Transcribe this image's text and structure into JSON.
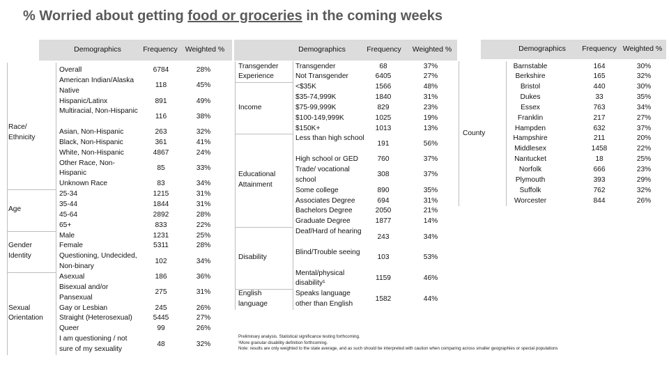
{
  "title": {
    "prefix": "% Worried about getting ",
    "underlined": "food or groceries",
    "suffix": " in the coming weeks"
  },
  "headers": {
    "demographics": "Demographics",
    "frequency": "Frequency",
    "weighted": "Weighted %"
  },
  "table1": {
    "groups": [
      {
        "label": "Race/ Ethnicity"
      },
      {
        "label": "Age"
      },
      {
        "label": "Gender Identity"
      },
      {
        "label": "Sexual Orientation"
      }
    ],
    "rows": [
      {
        "label": "Overall",
        "freq": "6784",
        "pct": "28%"
      },
      {
        "label": "American Indian/Alaska Native",
        "freq": "118",
        "pct": "45%"
      },
      {
        "label": "Hispanic/Latinx",
        "freq": "891",
        "pct": "49%"
      },
      {
        "label": "Multiracial, Non-Hispanic",
        "freq": "116",
        "pct": "38%"
      },
      {
        "label": "Asian, Non-Hispanic",
        "freq": "263",
        "pct": "32%"
      },
      {
        "label": "Black, Non-Hispanic",
        "freq": "361",
        "pct": "41%"
      },
      {
        "label": "White, Non-Hispanic",
        "freq": "4867",
        "pct": "24%"
      },
      {
        "label": "Other Race, Non-Hispanic",
        "freq": "85",
        "pct": "33%"
      },
      {
        "label": "Unknown Race",
        "freq": "83",
        "pct": "34%"
      },
      {
        "label": "25-34",
        "freq": "1215",
        "pct": "31%"
      },
      {
        "label": "35-44",
        "freq": "1844",
        "pct": "31%"
      },
      {
        "label": "45-64",
        "freq": "2892",
        "pct": "28%"
      },
      {
        "label": "65+",
        "freq": "833",
        "pct": "22%"
      },
      {
        "label": "Male",
        "freq": "1231",
        "pct": "25%"
      },
      {
        "label": "Female",
        "freq": "5311",
        "pct": "28%"
      },
      {
        "label": "Questioning, Undecided, Non-binary",
        "freq": "102",
        "pct": "34%"
      },
      {
        "label": "Asexual",
        "freq": "186",
        "pct": "36%"
      },
      {
        "label": "Bisexual and/or Pansexual",
        "freq": "275",
        "pct": "31%"
      },
      {
        "label": "Gay or Lesbian",
        "freq": "245",
        "pct": "26%"
      },
      {
        "label": "Straight (Heterosexual)",
        "freq": "5445",
        "pct": "27%"
      },
      {
        "label": "Queer",
        "freq": "99",
        "pct": "26%"
      },
      {
        "label": "I am questioning / not sure of my sexuality",
        "freq": "48",
        "pct": "32%"
      }
    ]
  },
  "table2": {
    "groups": [
      {
        "label": "Transgender Experience"
      },
      {
        "label": "Income"
      },
      {
        "label": "Educational Attainment"
      },
      {
        "label": "Disability"
      },
      {
        "label": "English language"
      }
    ],
    "rows": [
      {
        "label": "Transgender",
        "freq": "68",
        "pct": "37%"
      },
      {
        "label": "Not Transgender",
        "freq": "6405",
        "pct": "27%"
      },
      {
        "label": "<$35K",
        "freq": "1566",
        "pct": "48%"
      },
      {
        "label": "$35-74,999K",
        "freq": "1840",
        "pct": "31%"
      },
      {
        "label": "$75-99,999K",
        "freq": "829",
        "pct": "23%"
      },
      {
        "label": "$100-149,999K",
        "freq": "1025",
        "pct": "19%"
      },
      {
        "label": "$150K+",
        "freq": "1013",
        "pct": "13%"
      },
      {
        "label": "Less than high school",
        "freq": "191",
        "pct": "56%"
      },
      {
        "label": "High school or GED",
        "freq": "760",
        "pct": "37%"
      },
      {
        "label": "Trade/ vocational school",
        "freq": "308",
        "pct": "37%"
      },
      {
        "label": "Some college",
        "freq": "890",
        "pct": "35%"
      },
      {
        "label": "Associates Degree",
        "freq": "694",
        "pct": "31%"
      },
      {
        "label": "Bachelors Degree",
        "freq": "2050",
        "pct": "21%"
      },
      {
        "label": "Graduate Degree",
        "freq": "1877",
        "pct": "14%"
      },
      {
        "label": "Deaf/Hard of hearing",
        "freq": "243",
        "pct": "34%"
      },
      {
        "label": "Blind/Trouble seeing",
        "freq": "103",
        "pct": "53%"
      },
      {
        "label": "Mental/physical disability¹",
        "freq": "1159",
        "pct": "46%"
      },
      {
        "label": "Speaks language other than English",
        "freq": "1582",
        "pct": "44%"
      }
    ]
  },
  "table3": {
    "group": "County",
    "rows": [
      {
        "label": "Barnstable",
        "freq": "164",
        "pct": "30%"
      },
      {
        "label": "Berkshire",
        "freq": "165",
        "pct": "32%"
      },
      {
        "label": "Bristol",
        "freq": "440",
        "pct": "30%"
      },
      {
        "label": "Dukes",
        "freq": "33",
        "pct": "35%"
      },
      {
        "label": "Essex",
        "freq": "763",
        "pct": "34%"
      },
      {
        "label": "Franklin",
        "freq": "217",
        "pct": "27%"
      },
      {
        "label": "Hampden",
        "freq": "632",
        "pct": "37%"
      },
      {
        "label": "Hampshire",
        "freq": "211",
        "pct": "20%"
      },
      {
        "label": "Middlesex",
        "freq": "1458",
        "pct": "22%"
      },
      {
        "label": "Nantucket",
        "freq": "18",
        "pct": "25%"
      },
      {
        "label": "Norfolk",
        "freq": "666",
        "pct": "23%"
      },
      {
        "label": "Plymouth",
        "freq": "393",
        "pct": "29%"
      },
      {
        "label": "Suffolk",
        "freq": "762",
        "pct": "32%"
      },
      {
        "label": "Worcester",
        "freq": "844",
        "pct": "26%"
      }
    ]
  },
  "footnotes": [
    "Preliminary analysis. Statistical significance testing forthcoming.",
    "¹More granular disability definition forthcoming.",
    "Note: results are only weighted to the state average, and as such should be interpreted with caution when comparing across smaller geographies or special populations"
  ]
}
